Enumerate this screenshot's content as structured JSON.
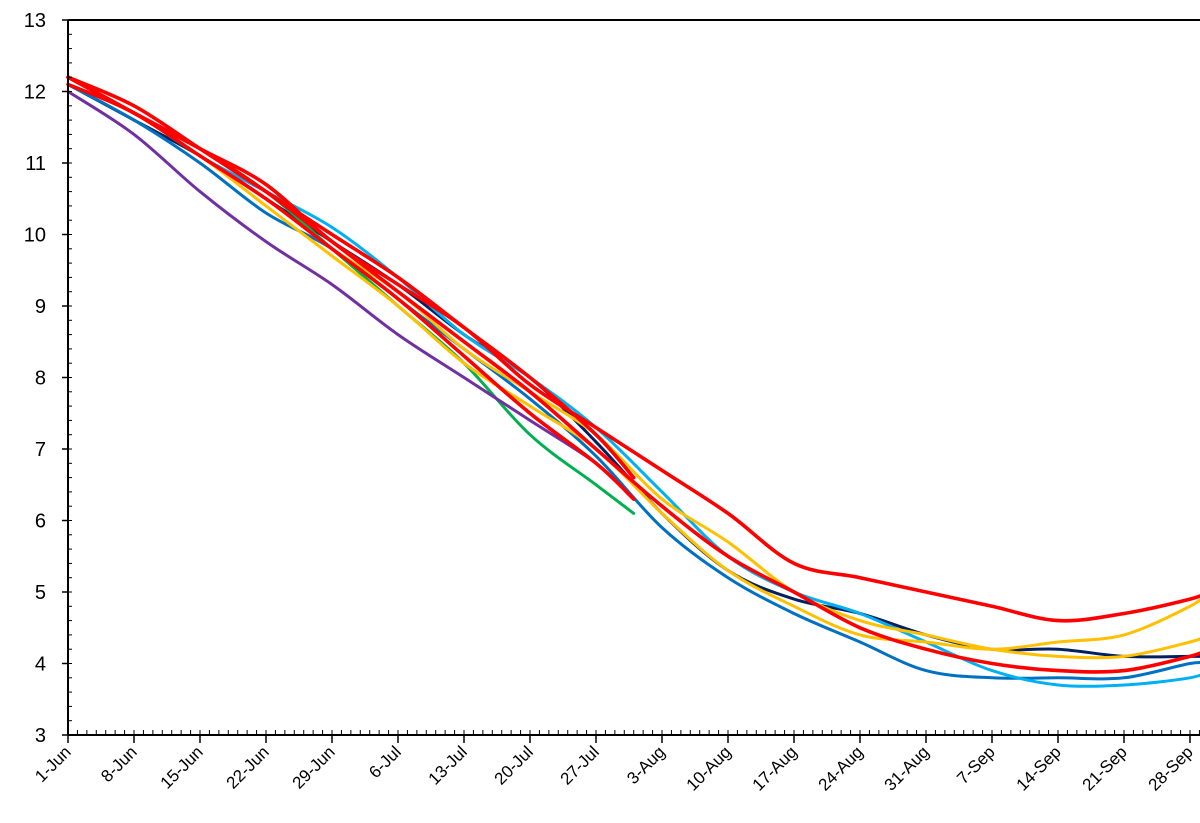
{
  "chart_data": {
    "type": "line",
    "title": "",
    "xlabel": "",
    "ylabel": "",
    "ylim": [
      3,
      13
    ],
    "yticks": [
      3,
      4,
      5,
      6,
      7,
      8,
      9,
      10,
      11,
      12,
      13
    ],
    "xticks": [
      "1-Jun",
      "8-Jun",
      "15-Jun",
      "22-Jun",
      "29-Jun",
      "6-Jul",
      "13-Jul",
      "20-Jul",
      "27-Jul",
      "3-Aug",
      "10-Aug",
      "17-Aug",
      "24-Aug",
      "31-Aug",
      "7-Sep",
      "14-Sep",
      "21-Sep",
      "28-Sep"
    ],
    "xrange": [
      "1-Jun",
      "30-Sep"
    ],
    "grid": false,
    "legend": "none",
    "series": [
      {
        "color": "#002060",
        "x": [
          "1-Jun",
          "8-Jun",
          "15-Jun",
          "22-Jun",
          "29-Jun",
          "6-Jul",
          "13-Jul",
          "20-Jul",
          "27-Jul",
          "3-Aug",
          "10-Aug",
          "17-Aug",
          "24-Aug",
          "31-Aug",
          "7-Sep",
          "14-Sep",
          "21-Sep",
          "28-Sep",
          "30-Sep"
        ],
        "values": [
          12.1,
          11.6,
          11.1,
          10.5,
          9.9,
          9.3,
          8.6,
          8.0,
          7.1,
          6.1,
          5.3,
          4.9,
          4.7,
          4.4,
          4.2,
          4.2,
          4.1,
          4.1,
          4.1
        ]
      },
      {
        "color": "#0070C0",
        "x": [
          "1-Jun",
          "8-Jun",
          "15-Jun",
          "22-Jun",
          "29-Jun",
          "6-Jul",
          "13-Jul",
          "20-Jul",
          "27-Jul",
          "3-Aug",
          "10-Aug",
          "17-Aug",
          "24-Aug",
          "31-Aug",
          "7-Sep",
          "14-Sep",
          "21-Sep",
          "28-Sep",
          "30-Sep"
        ],
        "values": [
          12.1,
          11.6,
          11.0,
          10.3,
          9.8,
          9.1,
          8.4,
          7.7,
          6.9,
          5.9,
          5.2,
          4.7,
          4.3,
          3.9,
          3.8,
          3.8,
          3.8,
          4.0,
          4.0
        ]
      },
      {
        "color": "#00B0F0",
        "x": [
          "1-Jun",
          "8-Jun",
          "15-Jun",
          "22-Jun",
          "29-Jun",
          "6-Jul",
          "13-Jul",
          "20-Jul",
          "27-Jul",
          "3-Aug",
          "10-Aug",
          "17-Aug",
          "24-Aug",
          "31-Aug",
          "7-Sep",
          "14-Sep",
          "21-Sep",
          "28-Sep",
          "30-Sep"
        ],
        "values": [
          12.1,
          11.7,
          11.1,
          10.6,
          10.1,
          9.4,
          8.6,
          8.0,
          7.3,
          6.4,
          5.5,
          5.0,
          4.7,
          4.3,
          3.9,
          3.7,
          3.7,
          3.8,
          3.9
        ]
      },
      {
        "color": "#00B050",
        "x": [
          "1-Jun",
          "8-Jun",
          "15-Jun",
          "22-Jun",
          "29-Jun",
          "6-Jul",
          "13-Jul",
          "20-Jul",
          "27-Jul",
          "31-Jul"
        ],
        "values": [
          12.2,
          11.7,
          11.2,
          10.6,
          9.8,
          9.0,
          8.2,
          7.2,
          6.5,
          6.1
        ]
      },
      {
        "color": "#7030A0",
        "x": [
          "1-Jun",
          "8-Jun",
          "15-Jun",
          "22-Jun",
          "29-Jun",
          "6-Jul",
          "13-Jul",
          "20-Jul",
          "27-Jul",
          "31-Jul"
        ],
        "values": [
          12.0,
          11.4,
          10.6,
          9.9,
          9.3,
          8.6,
          8.0,
          7.4,
          6.8,
          6.3
        ]
      },
      {
        "color": "#FFC000",
        "x": [
          "1-Jun",
          "8-Jun",
          "15-Jun",
          "22-Jun",
          "29-Jun",
          "6-Jul",
          "13-Jul",
          "20-Jul",
          "27-Jul",
          "3-Aug",
          "10-Aug",
          "17-Aug",
          "24-Aug",
          "31-Aug",
          "7-Sep",
          "14-Sep",
          "21-Sep",
          "28-Sep",
          "30-Sep"
        ],
        "values": [
          12.2,
          11.7,
          11.1,
          10.4,
          9.7,
          9.0,
          8.2,
          7.6,
          7.0,
          6.1,
          5.3,
          4.8,
          4.4,
          4.3,
          4.2,
          4.3,
          4.4,
          4.8,
          5.0
        ]
      },
      {
        "color": "#FFC000",
        "x": [
          "1-Jun",
          "8-Jun",
          "15-Jun",
          "22-Jun",
          "29-Jun",
          "6-Jul",
          "13-Jul",
          "20-Jul",
          "27-Jul",
          "3-Aug",
          "10-Aug",
          "17-Aug",
          "24-Aug",
          "31-Aug",
          "7-Sep",
          "14-Sep",
          "21-Sep",
          "28-Sep",
          "30-Sep"
        ],
        "values": [
          12.2,
          11.7,
          11.1,
          10.5,
          9.8,
          9.2,
          8.4,
          7.8,
          7.2,
          6.3,
          5.7,
          5.0,
          4.6,
          4.4,
          4.2,
          4.1,
          4.1,
          4.3,
          4.4
        ]
      },
      {
        "color": "#FF0000",
        "x": [
          "1-Jun",
          "8-Jun",
          "15-Jun",
          "22-Jun",
          "29-Jun",
          "6-Jul",
          "13-Jul",
          "20-Jul",
          "27-Jul",
          "3-Aug",
          "10-Aug",
          "17-Aug",
          "24-Aug",
          "31-Aug",
          "7-Sep",
          "14-Sep",
          "21-Sep",
          "28-Sep",
          "30-Sep"
        ],
        "values": [
          12.2,
          11.7,
          11.2,
          10.7,
          9.9,
          9.3,
          8.7,
          7.9,
          7.3,
          6.7,
          6.1,
          5.4,
          5.2,
          5.0,
          4.8,
          4.6,
          4.7,
          4.9,
          5.0
        ]
      },
      {
        "color": "#FF0000",
        "x": [
          "1-Jun",
          "8-Jun",
          "15-Jun",
          "22-Jun",
          "29-Jun",
          "6-Jul",
          "13-Jul",
          "20-Jul",
          "27-Jul",
          "3-Aug",
          "10-Aug",
          "17-Aug",
          "24-Aug",
          "31-Aug",
          "7-Sep",
          "14-Sep",
          "21-Sep",
          "28-Sep",
          "30-Sep"
        ],
        "values": [
          12.2,
          11.7,
          11.2,
          10.6,
          9.9,
          9.2,
          8.5,
          7.8,
          7.0,
          6.2,
          5.5,
          5.0,
          4.5,
          4.2,
          4.0,
          3.9,
          3.9,
          4.1,
          4.2
        ]
      },
      {
        "color": "#FF0000",
        "x": [
          "1-Jun",
          "8-Jun",
          "15-Jun",
          "22-Jun",
          "29-Jun",
          "6-Jul",
          "13-Jul",
          "20-Jul",
          "27-Jul",
          "31-Jul"
        ],
        "values": [
          12.2,
          11.8,
          11.2,
          10.6,
          10.0,
          9.4,
          8.7,
          8.0,
          7.2,
          6.6
        ]
      },
      {
        "color": "#FF0000",
        "x": [
          "1-Jun",
          "8-Jun",
          "15-Jun",
          "22-Jun",
          "29-Jun",
          "6-Jul",
          "13-Jul",
          "20-Jul",
          "27-Jul",
          "31-Jul"
        ],
        "values": [
          12.1,
          11.7,
          11.1,
          10.5,
          9.8,
          9.1,
          8.3,
          7.5,
          6.8,
          6.3
        ]
      }
    ]
  }
}
